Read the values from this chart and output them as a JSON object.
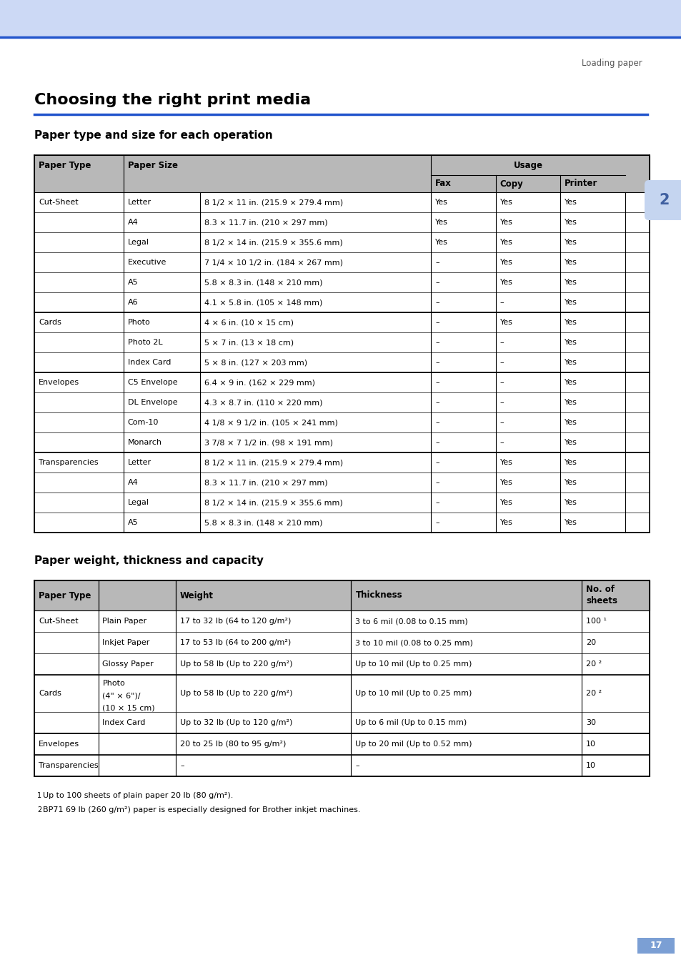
{
  "page_bg": "#ffffff",
  "header_bg": "#ccd9f5",
  "header_line_color": "#2255cc",
  "header_text": "Loading paper",
  "chapter_num": "2",
  "chapter_num_bg": "#c5d5f0",
  "main_title": "Choosing the right print media",
  "section1_title": "Paper type and size for each operation",
  "section2_title": "Paper weight, thickness and capacity",
  "table_header_bg": "#b8b8b8",
  "table1_data": [
    [
      "Cut-Sheet",
      "Letter",
      "8 1/2 × 11 in. (215.9 × 279.4 mm)",
      "Yes",
      "Yes",
      "Yes"
    ],
    [
      "",
      "A4",
      "8.3 × 11.7 in. (210 × 297 mm)",
      "Yes",
      "Yes",
      "Yes"
    ],
    [
      "",
      "Legal",
      "8 1/2 × 14 in. (215.9 × 355.6 mm)",
      "Yes",
      "Yes",
      "Yes"
    ],
    [
      "",
      "Executive",
      "7 1/4 × 10 1/2 in. (184 × 267 mm)",
      "–",
      "Yes",
      "Yes"
    ],
    [
      "",
      "A5",
      "5.8 × 8.3 in. (148 × 210 mm)",
      "–",
      "Yes",
      "Yes"
    ],
    [
      "",
      "A6",
      "4.1 × 5.8 in. (105 × 148 mm)",
      "–",
      "–",
      "Yes"
    ],
    [
      "Cards",
      "Photo",
      "4 × 6 in. (10 × 15 cm)",
      "–",
      "Yes",
      "Yes"
    ],
    [
      "",
      "Photo 2L",
      "5 × 7 in. (13 × 18 cm)",
      "–",
      "–",
      "Yes"
    ],
    [
      "",
      "Index Card",
      "5 × 8 in. (127 × 203 mm)",
      "–",
      "–",
      "Yes"
    ],
    [
      "Envelopes",
      "C5 Envelope",
      "6.4 × 9 in. (162 × 229 mm)",
      "–",
      "–",
      "Yes"
    ],
    [
      "",
      "DL Envelope",
      "4.3 × 8.7 in. (110 × 220 mm)",
      "–",
      "–",
      "Yes"
    ],
    [
      "",
      "Com-10",
      "4 1/8 × 9 1/2 in. (105 × 241 mm)",
      "–",
      "–",
      "Yes"
    ],
    [
      "",
      "Monarch",
      "3 7/8 × 7 1/2 in. (98 × 191 mm)",
      "–",
      "–",
      "Yes"
    ],
    [
      "Transparencies",
      "Letter",
      "8 1/2 × 11 in. (215.9 × 279.4 mm)",
      "–",
      "Yes",
      "Yes"
    ],
    [
      "",
      "A4",
      "8.3 × 11.7 in. (210 × 297 mm)",
      "–",
      "Yes",
      "Yes"
    ],
    [
      "",
      "Legal",
      "8 1/2 × 14 in. (215.9 × 355.6 mm)",
      "–",
      "Yes",
      "Yes"
    ],
    [
      "",
      "A5",
      "5.8 × 8.3 in. (148 × 210 mm)",
      "–",
      "Yes",
      "Yes"
    ]
  ],
  "table1_groups": [
    6,
    9,
    13,
    17
  ],
  "table2_data": [
    [
      "Cut-Sheet",
      "Plain Paper",
      "17 to 32 lb (64 to 120 g/m²)",
      "3 to 6 mil (0.08 to 0.15 mm)",
      "100 ¹"
    ],
    [
      "",
      "Inkjet Paper",
      "17 to 53 lb (64 to 200 g/m²)",
      "3 to 10 mil (0.08 to 0.25 mm)",
      "20"
    ],
    [
      "",
      "Glossy Paper",
      "Up to 58 lb (Up to 220 g/m²)",
      "Up to 10 mil (Up to 0.25 mm)",
      "20 ²"
    ],
    [
      "Cards",
      "Photo\n(4\" × 6\")/\n(10 × 15 cm)",
      "Up to 58 lb (Up to 220 g/m²)",
      "Up to 10 mil (Up to 0.25 mm)",
      "20 ²"
    ],
    [
      "",
      "Index Card",
      "Up to 32 lb (Up to 120 g/m²)",
      "Up to 6 mil (Up to 0.15 mm)",
      "30"
    ],
    [
      "Envelopes",
      "",
      "20 to 25 lb (80 to 95 g/m²)",
      "Up to 20 mil (Up to 0.52 mm)",
      "10"
    ],
    [
      "Transparencies",
      "",
      "–",
      "–",
      "10"
    ]
  ],
  "table2_groups": [
    3,
    5,
    6,
    7
  ],
  "footnote1": "¹  Up to 100 sheets of plain paper 20 lb (80 g/m²).",
  "footnote2": "²  BP71 69 lb (260 g/m²) paper is especially designed for Brother inkjet machines.",
  "page_number": "17"
}
